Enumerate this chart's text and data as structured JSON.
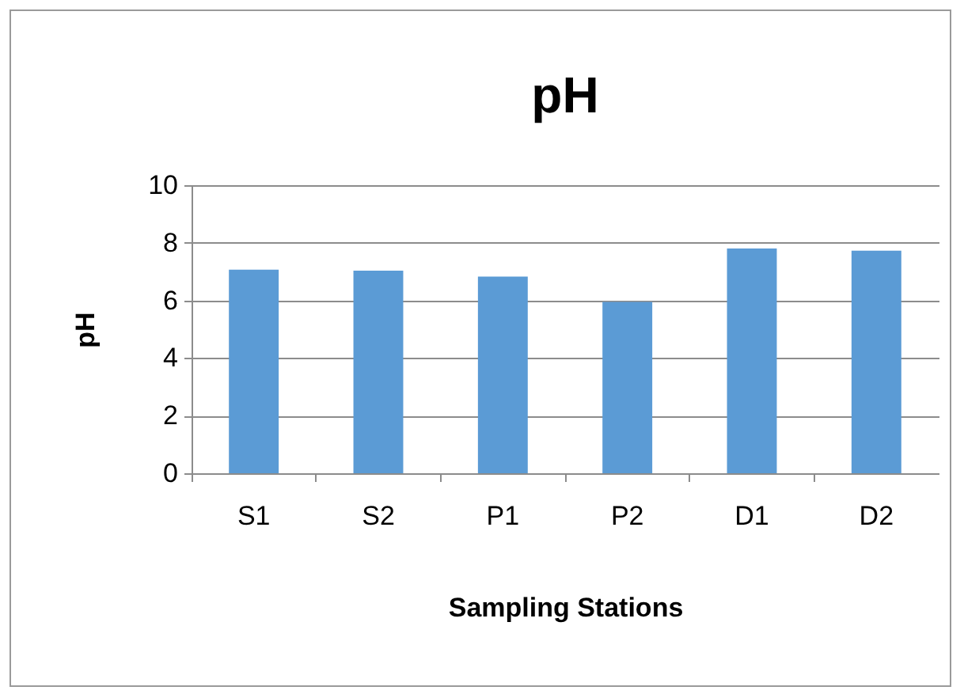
{
  "chart_data": {
    "type": "bar",
    "title": "pH",
    "xlabel": "Sampling Stations",
    "ylabel": "pH",
    "categories": [
      "S1",
      "S2",
      "P1",
      "P2",
      "D1",
      "D2"
    ],
    "values": [
      7.07,
      7.03,
      6.83,
      5.95,
      7.8,
      7.73
    ],
    "color": "#5b9bd5",
    "ylim": [
      0,
      10
    ],
    "yticks": [
      0,
      2,
      4,
      6,
      8,
      10
    ],
    "grid": "y"
  }
}
